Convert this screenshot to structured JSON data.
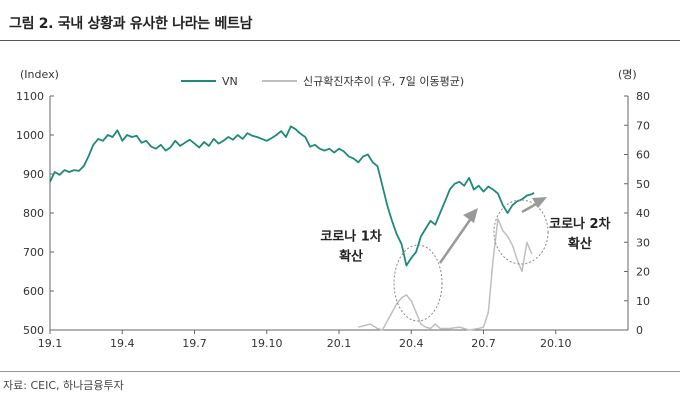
{
  "title": "그림 2. 국내 상황과 유사한 나라는 베트남",
  "source": "자료: CEIC, 하나금융투자",
  "colors": {
    "vn": "#1e8a78",
    "cases": "#bfbfbf",
    "arrow": "#999999",
    "circle": "#888888"
  },
  "chart_data": {
    "type": "line",
    "left_unit": "(Index)",
    "right_unit": "(명)",
    "x_ticks": [
      "19.1",
      "19.4",
      "19.7",
      "19.10",
      "20.1",
      "20.4",
      "20.7",
      "20.10"
    ],
    "x_tick_values": [
      0,
      3,
      6,
      9,
      12,
      15,
      18,
      21
    ],
    "xlim": [
      0,
      24
    ],
    "left_ylim": [
      500,
      1100
    ],
    "left_ticks": [
      500,
      600,
      700,
      800,
      900,
      1000,
      1100
    ],
    "right_ylim": [
      0,
      80
    ],
    "right_ticks": [
      0,
      10,
      20,
      30,
      40,
      50,
      60,
      70,
      80
    ],
    "series": [
      {
        "name": "VN",
        "axis": "left",
        "points": [
          [
            0.0,
            880
          ],
          [
            0.2,
            905
          ],
          [
            0.4,
            898
          ],
          [
            0.6,
            910
          ],
          [
            0.8,
            905
          ],
          [
            1.0,
            910
          ],
          [
            1.2,
            908
          ],
          [
            1.4,
            920
          ],
          [
            1.6,
            945
          ],
          [
            1.8,
            975
          ],
          [
            2.0,
            990
          ],
          [
            2.2,
            985
          ],
          [
            2.4,
            1000
          ],
          [
            2.6,
            995
          ],
          [
            2.8,
            1012
          ],
          [
            3.0,
            985
          ],
          [
            3.2,
            1000
          ],
          [
            3.4,
            995
          ],
          [
            3.6,
            998
          ],
          [
            3.8,
            980
          ],
          [
            4.0,
            985
          ],
          [
            4.2,
            970
          ],
          [
            4.4,
            965
          ],
          [
            4.6,
            975
          ],
          [
            4.8,
            960
          ],
          [
            5.0,
            968
          ],
          [
            5.2,
            985
          ],
          [
            5.4,
            972
          ],
          [
            5.6,
            980
          ],
          [
            5.8,
            988
          ],
          [
            6.0,
            978
          ],
          [
            6.2,
            968
          ],
          [
            6.4,
            982
          ],
          [
            6.6,
            972
          ],
          [
            6.8,
            990
          ],
          [
            7.0,
            978
          ],
          [
            7.2,
            985
          ],
          [
            7.4,
            995
          ],
          [
            7.6,
            988
          ],
          [
            7.8,
            1000
          ],
          [
            8.0,
            990
          ],
          [
            8.2,
            1005
          ],
          [
            8.4,
            998
          ],
          [
            8.6,
            995
          ],
          [
            8.8,
            990
          ],
          [
            9.0,
            985
          ],
          [
            9.2,
            992
          ],
          [
            9.4,
            1000
          ],
          [
            9.6,
            1010
          ],
          [
            9.8,
            995
          ],
          [
            10.0,
            1022
          ],
          [
            10.2,
            1015
          ],
          [
            10.4,
            1003
          ],
          [
            10.6,
            995
          ],
          [
            10.8,
            970
          ],
          [
            11.0,
            975
          ],
          [
            11.2,
            965
          ],
          [
            11.4,
            960
          ],
          [
            11.6,
            965
          ],
          [
            11.8,
            955
          ],
          [
            12.0,
            965
          ],
          [
            12.2,
            958
          ],
          [
            12.4,
            945
          ],
          [
            12.6,
            940
          ],
          [
            12.8,
            930
          ],
          [
            13.0,
            945
          ],
          [
            13.2,
            950
          ],
          [
            13.4,
            930
          ],
          [
            13.6,
            920
          ],
          [
            13.8,
            870
          ],
          [
            14.0,
            820
          ],
          [
            14.2,
            780
          ],
          [
            14.4,
            745
          ],
          [
            14.6,
            720
          ],
          [
            14.8,
            665
          ],
          [
            15.0,
            685
          ],
          [
            15.2,
            700
          ],
          [
            15.4,
            740
          ],
          [
            15.6,
            760
          ],
          [
            15.8,
            780
          ],
          [
            16.0,
            770
          ],
          [
            16.2,
            800
          ],
          [
            16.4,
            830
          ],
          [
            16.6,
            860
          ],
          [
            16.8,
            875
          ],
          [
            17.0,
            880
          ],
          [
            17.2,
            870
          ],
          [
            17.4,
            890
          ],
          [
            17.6,
            860
          ],
          [
            17.8,
            870
          ],
          [
            18.0,
            855
          ],
          [
            18.2,
            868
          ],
          [
            18.4,
            860
          ],
          [
            18.6,
            850
          ],
          [
            18.8,
            820
          ],
          [
            19.0,
            800
          ],
          [
            19.2,
            820
          ],
          [
            19.4,
            830
          ],
          [
            19.6,
            835
          ],
          [
            19.8,
            845
          ],
          [
            20.0,
            848
          ],
          [
            20.1,
            852
          ]
        ]
      },
      {
        "name": "신규확진자추이 (우, 7일 이동평균)",
        "axis": "right",
        "points": [
          [
            12.8,
            1
          ],
          [
            13.3,
            2
          ],
          [
            13.6,
            0.5
          ],
          [
            13.8,
            0
          ],
          [
            14.0,
            3
          ],
          [
            14.2,
            6
          ],
          [
            14.4,
            9
          ],
          [
            14.6,
            11
          ],
          [
            14.8,
            12
          ],
          [
            15.0,
            10
          ],
          [
            15.2,
            6
          ],
          [
            15.4,
            2
          ],
          [
            15.6,
            1
          ],
          [
            15.8,
            0.5
          ],
          [
            16.0,
            2
          ],
          [
            16.2,
            0.5
          ],
          [
            16.6,
            0.5
          ],
          [
            17.0,
            1
          ],
          [
            17.4,
            0
          ],
          [
            17.8,
            0.5
          ],
          [
            18.0,
            1
          ],
          [
            18.2,
            6
          ],
          [
            18.4,
            24
          ],
          [
            18.6,
            38
          ],
          [
            18.8,
            34
          ],
          [
            19.0,
            32
          ],
          [
            19.2,
            29
          ],
          [
            19.4,
            24
          ],
          [
            19.6,
            20
          ],
          [
            19.8,
            30
          ],
          [
            20.0,
            26
          ]
        ]
      }
    ],
    "annotations": [
      {
        "lines": [
          "코로나 1차",
          "확산"
        ],
        "x": 12.5,
        "y": 730
      },
      {
        "lines": [
          "코로나 2차",
          "확산"
        ],
        "x": 22.0,
        "y": 762
      }
    ]
  }
}
